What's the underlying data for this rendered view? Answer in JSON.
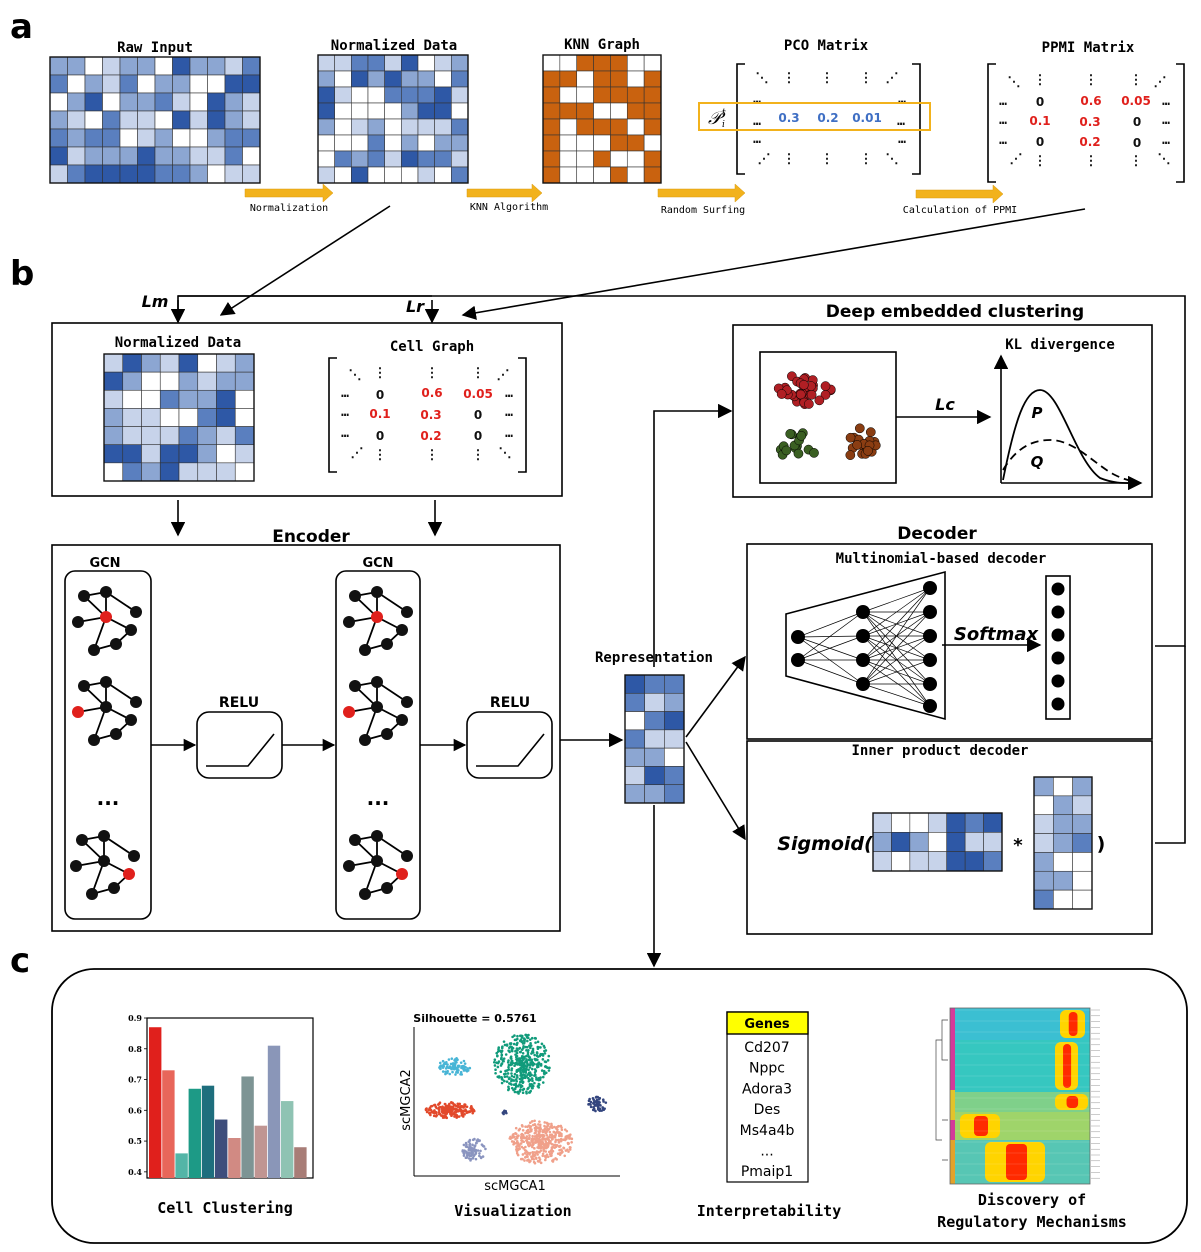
{
  "panels": {
    "a": "a",
    "b": "b",
    "c": "c"
  },
  "panel_a": {
    "raw_input": "Raw Input",
    "normalized_data": "Normalized Data",
    "knn_graph": "KNN Graph",
    "pco_matrix": "PCO Matrix",
    "ppmi_matrix": "PPMI Matrix",
    "arrows": [
      "Normalization",
      "KNN Algorithm",
      "Random Surfing",
      "Calculation of PPMI"
    ],
    "pco_symbol": "𝒫",
    "pco_sup": "t",
    "pco_sub": "i",
    "pco_row": [
      "0.3",
      "0.2",
      "0.01"
    ],
    "ppmi_rows": [
      [
        "0",
        "0.6",
        "0.05"
      ],
      [
        "0.1",
        "0.3",
        "0"
      ],
      [
        "0",
        "0.2",
        "0"
      ]
    ],
    "colors": {
      "blue_value": "#3f6fc4",
      "red_value": "#e0201c",
      "highlight": "#f2b21c",
      "orange": "#c9620f"
    }
  },
  "panel_b": {
    "lm": "Lm",
    "lr": "Lr",
    "lc": "Lc",
    "normalized_data": "Normalized Data",
    "cell_graph": "Cell Graph",
    "cell_graph_rows": [
      [
        "0",
        "0.6",
        "0.05"
      ],
      [
        "0.1",
        "0.3",
        "0"
      ],
      [
        "0",
        "0.2",
        "0"
      ]
    ],
    "encoder": "Encoder",
    "gcn": "GCN",
    "relu": "RELU",
    "ellipsis": "...",
    "representation": "Representation",
    "dec_title": "Deep embedded clustering",
    "kl": "KL divergence",
    "p": "P",
    "q": "Q",
    "decoder": "Decoder",
    "multinomial": "Multinomial-based decoder",
    "softmax": "Softmax",
    "inner_product": "Inner product decoder",
    "sigmoid": "Sigmoid(",
    "times": "*",
    "close_paren": ")"
  },
  "panel_c": {
    "cell_clustering": "Cell Clustering",
    "visualization": "Visualization",
    "interpretability": "Interpretability",
    "discovery_line1": "Discovery of",
    "discovery_line2": "Regulatory Mechanisms",
    "silhouette": "Silhouette = 0.5761",
    "xaxis": "scMGCA1",
    "yaxis": "scMGCA2",
    "genes_header": "Genes",
    "genes": [
      "Cd207",
      "Nppc",
      "Adora3",
      "Des",
      "Ms4a4b",
      "...",
      "Pmaip1"
    ]
  },
  "chart_data": {
    "type": "bar",
    "ylim": [
      0.38,
      0.9
    ],
    "yticks": [
      "0.9",
      "0.8",
      "0.7",
      "0.6",
      "0.5",
      "0.4"
    ],
    "values": [
      0.87,
      0.73,
      0.46,
      0.67,
      0.68,
      0.57,
      0.51,
      0.71,
      0.55,
      0.81,
      0.63,
      0.48
    ],
    "colors": [
      "#e0201c",
      "#e8665a",
      "#53b5a7",
      "#1d9a86",
      "#1e6e7d",
      "#3e4e7c",
      "#d18a83",
      "#7d9494",
      "#c09592",
      "#8a96b8",
      "#8fc3b3",
      "#a87d77"
    ]
  }
}
